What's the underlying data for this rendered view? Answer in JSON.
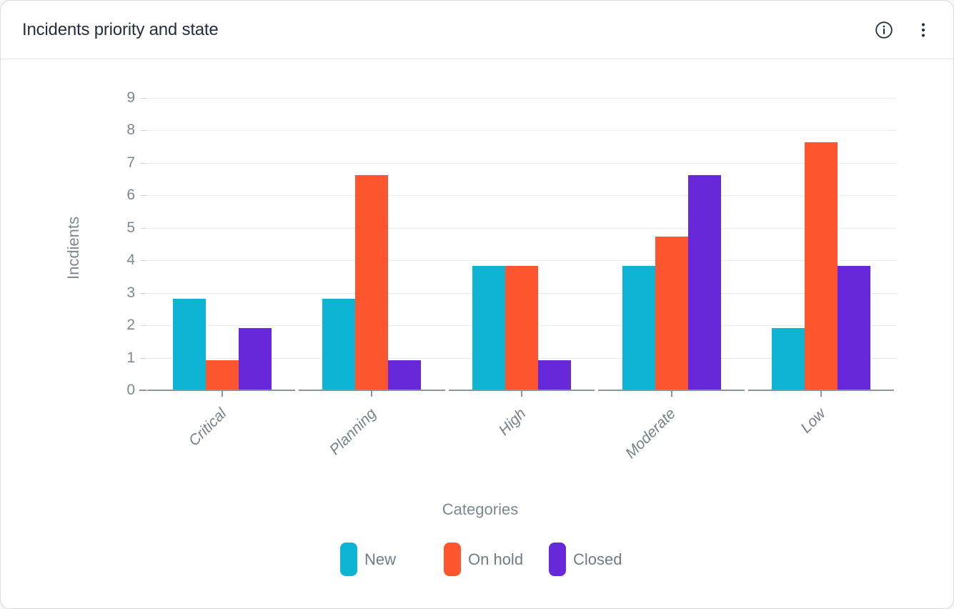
{
  "header": {
    "title": "Incidents priority and state",
    "info_icon": "info-circle",
    "menu_icon": "kebab-vertical-dots"
  },
  "chart_data": {
    "type": "bar",
    "title": "Incidents priority and state",
    "categories": [
      "Critical",
      "Planning",
      "High",
      "Moderate",
      "Low"
    ],
    "series": [
      {
        "name": "New",
        "color": "#0db4d4",
        "values": [
          2.8,
          2.8,
          3.8,
          3.8,
          1.9
        ]
      },
      {
        "name": "On hold",
        "color": "#fd562e",
        "values": [
          0.9,
          6.6,
          3.8,
          4.7,
          7.6
        ]
      },
      {
        "name": "Closed",
        "color": "#6628d9",
        "values": [
          1.9,
          0.9,
          0.9,
          6.6,
          3.8
        ]
      }
    ],
    "xlabel": "Categories",
    "ylabel": "Incdients",
    "ylim": [
      0,
      9
    ],
    "yticks": [
      0,
      1,
      2,
      3,
      4,
      5,
      6,
      7,
      8,
      9
    ],
    "grid": true,
    "legend_position": "bottom",
    "bar_corner": "square"
  },
  "colors": {
    "title_text": "#232f3f",
    "icon": "#232f3f",
    "axis_line": "#8b959d",
    "gridline": "#e8ebee",
    "tick_text": "#7b8893",
    "x_tick_text": "#73808c",
    "legend_text": "#6e7c89",
    "card_border": "#d8dce1",
    "card_background": "#ffffff"
  }
}
